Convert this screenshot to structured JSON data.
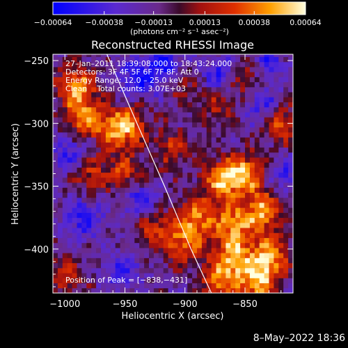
{
  "chart_data": {
    "type": "heatmap",
    "title": "Reconstructed RHESSI Image",
    "xlabel": "Heliocentric X (arcsec)",
    "ylabel": "Heliocentric Y (arcsec)",
    "xlim": [
      -1010,
      -810
    ],
    "ylim": [
      -435,
      -245
    ],
    "x_ticks": [
      -1000,
      -950,
      -900,
      -850
    ],
    "x_tick_labels": [
      "−1000",
      "−950",
      "−900",
      "−850"
    ],
    "y_ticks": [
      -250,
      -300,
      -350,
      -400
    ],
    "y_tick_labels": [
      "−250",
      "−300",
      "−350",
      "−400"
    ],
    "colorbar": {
      "range": [
        -0.00064,
        0.00064
      ],
      "ticks": [
        -0.00064,
        -0.00038,
        -0.00013,
        0.00013,
        0.00038,
        0.00064
      ],
      "tick_labels": [
        "−0.00064",
        "−0.00038",
        "−0.00013",
        "0.00013",
        "0.00038",
        "0.00064"
      ],
      "unit_label": "(photons cm⁻² s⁻¹ asec⁻²)"
    },
    "annotations": [
      "27–Jan–2011 18:39:08.000 to 18:43:24.000",
      "Detectors: 3F 4F 5F 6F 7F 8F, Att 0",
      "Energy Range: 12.0 – 25.0 keV",
      "Clean    Total counts: 3.07E+03"
    ],
    "peak_label": "Position of Peak = [−838,−431]",
    "peak_position": [
      -838,
      -431
    ],
    "limb_curve": [
      [
        -965,
        -245
      ],
      [
        -940,
        -300
      ],
      [
        -917,
        -350
      ],
      [
        -895,
        -400
      ],
      [
        -878,
        -435
      ]
    ],
    "bright_regions": [
      {
        "x": -990,
        "y": -270,
        "intensity": 0.9
      },
      {
        "x": -985,
        "y": -295,
        "intensity": 0.8
      },
      {
        "x": -960,
        "y": -305,
        "intensity": 0.75
      },
      {
        "x": -945,
        "y": -300,
        "intensity": 0.7
      },
      {
        "x": -980,
        "y": -340,
        "intensity": 0.55
      },
      {
        "x": -950,
        "y": -340,
        "intensity": 0.6
      },
      {
        "x": -910,
        "y": -320,
        "intensity": 0.55
      },
      {
        "x": -870,
        "y": -345,
        "intensity": 0.9
      },
      {
        "x": -850,
        "y": -340,
        "intensity": 0.95
      },
      {
        "x": -835,
        "y": -370,
        "intensity": 0.95
      },
      {
        "x": -860,
        "y": -380,
        "intensity": 0.85
      },
      {
        "x": -890,
        "y": -375,
        "intensity": 0.8
      },
      {
        "x": -900,
        "y": -395,
        "intensity": 0.7
      },
      {
        "x": -925,
        "y": -385,
        "intensity": 0.6
      },
      {
        "x": -860,
        "y": -405,
        "intensity": 0.85
      },
      {
        "x": -830,
        "y": -405,
        "intensity": 0.9
      },
      {
        "x": -840,
        "y": -425,
        "intensity": 1.0
      },
      {
        "x": -870,
        "y": -425,
        "intensity": 0.8
      },
      {
        "x": -820,
        "y": -300,
        "intensity": 0.7
      },
      {
        "x": -850,
        "y": -265,
        "intensity": 0.55
      },
      {
        "x": -875,
        "y": -285,
        "intensity": 0.45
      },
      {
        "x": -905,
        "y": -265,
        "intensity": 0.5
      },
      {
        "x": -1000,
        "y": -420,
        "intensity": 0.45
      },
      {
        "x": -960,
        "y": -410,
        "intensity": 0.35
      }
    ],
    "dark_regions": [
      {
        "x": -915,
        "y": -255,
        "intensity": -0.8
      },
      {
        "x": -940,
        "y": -265,
        "intensity": -0.6
      },
      {
        "x": -995,
        "y": -325,
        "intensity": -0.5
      },
      {
        "x": -985,
        "y": -375,
        "intensity": -0.6
      },
      {
        "x": -955,
        "y": -415,
        "intensity": -0.75
      },
      {
        "x": -940,
        "y": -360,
        "intensity": -0.5
      },
      {
        "x": -870,
        "y": -260,
        "intensity": -0.6
      },
      {
        "x": -835,
        "y": -285,
        "intensity": -0.5
      },
      {
        "x": -815,
        "y": -340,
        "intensity": -0.4
      },
      {
        "x": -830,
        "y": -250,
        "intensity": -0.45
      }
    ]
  },
  "footer": {
    "date": "8–May–2022 18:36"
  },
  "colors": {
    "background": "#000000",
    "foreground": "#ffffff",
    "limb": "#ffffff"
  }
}
